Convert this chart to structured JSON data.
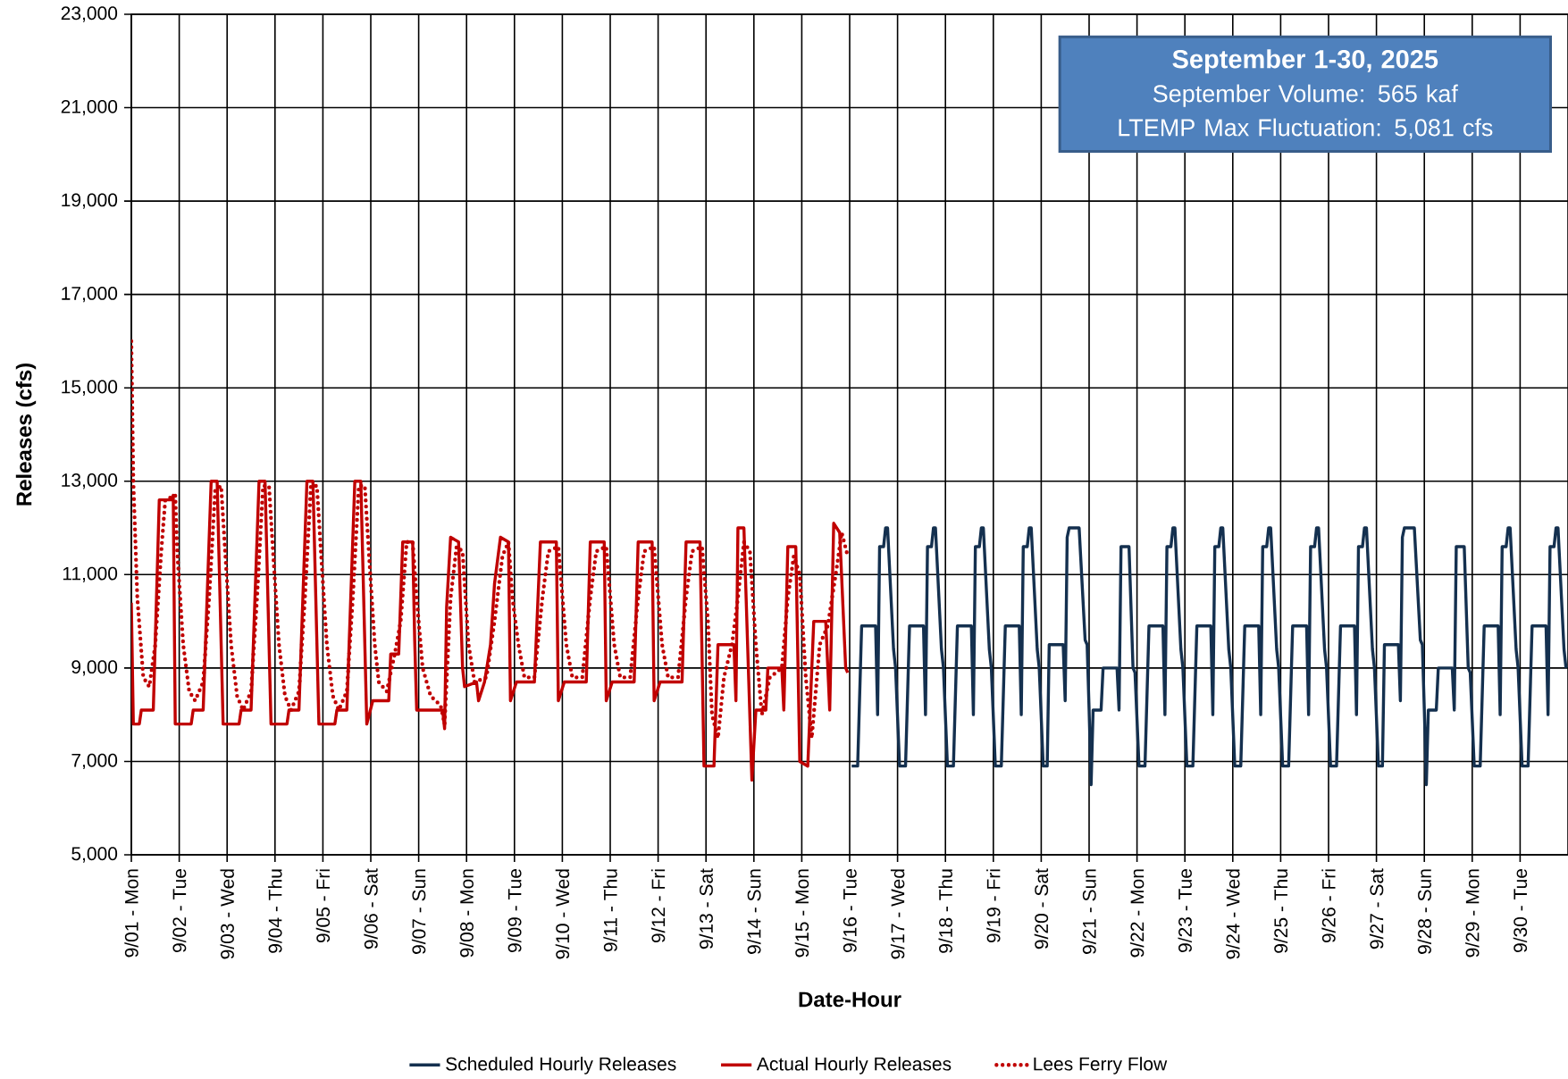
{
  "chart_data": {
    "type": "line",
    "title": "September 1-30, 2025",
    "annotations": [
      "September Volume: 565 kaf",
      "LTEMP Max Fluctuation: 5,081 cfs"
    ],
    "xlabel": "Date-Hour",
    "ylabel": "Releases (cfs)",
    "grid": true,
    "legend": "bottom",
    "xlim": [
      "2025-09-01T00:00",
      "2025-10-01T00:00"
    ],
    "ylim": [
      5000,
      23000
    ],
    "yticks": [
      {
        "value": 5000,
        "label": "5,000"
      },
      {
        "value": 7000,
        "label": "7,000"
      },
      {
        "value": 9000,
        "label": "9,000"
      },
      {
        "value": 11000,
        "label": "11,000"
      },
      {
        "value": 13000,
        "label": "13,000"
      },
      {
        "value": 15000,
        "label": "15,000"
      },
      {
        "value": 17000,
        "label": "17,000"
      },
      {
        "value": 19000,
        "label": "19,000"
      },
      {
        "value": 21000,
        "label": "21,000"
      },
      {
        "value": 23000,
        "label": "23,000"
      }
    ],
    "xticks": [
      {
        "value": "2025-09-01",
        "label": "9/01 - Mon"
      },
      {
        "value": "2025-09-02",
        "label": "9/02 - Tue"
      },
      {
        "value": "2025-09-03",
        "label": "9/03 - Wed"
      },
      {
        "value": "2025-09-04",
        "label": "9/04 - Thu"
      },
      {
        "value": "2025-09-05",
        "label": "9/05 - Fri"
      },
      {
        "value": "2025-09-06",
        "label": "9/06 - Sat"
      },
      {
        "value": "2025-09-07",
        "label": "9/07 - Sun"
      },
      {
        "value": "2025-09-08",
        "label": "9/08 - Mon"
      },
      {
        "value": "2025-09-09",
        "label": "9/09 - Tue"
      },
      {
        "value": "2025-09-10",
        "label": "9/10 - Wed"
      },
      {
        "value": "2025-09-11",
        "label": "9/11 - Thu"
      },
      {
        "value": "2025-09-12",
        "label": "9/12 - Fri"
      },
      {
        "value": "2025-09-13",
        "label": "9/13 - Sat"
      },
      {
        "value": "2025-09-14",
        "label": "9/14 - Sun"
      },
      {
        "value": "2025-09-15",
        "label": "9/15 - Mon"
      },
      {
        "value": "2025-09-16",
        "label": "9/16 - Tue"
      },
      {
        "value": "2025-09-17",
        "label": "9/17 - Wed"
      },
      {
        "value": "2025-09-18",
        "label": "9/18 - Thu"
      },
      {
        "value": "2025-09-19",
        "label": "9/19 - Fri"
      },
      {
        "value": "2025-09-20",
        "label": "9/20 - Sat"
      },
      {
        "value": "2025-09-21",
        "label": "9/21 - Sun"
      },
      {
        "value": "2025-09-22",
        "label": "9/22 - Mon"
      },
      {
        "value": "2025-09-23",
        "label": "9/23 - Tue"
      },
      {
        "value": "2025-09-24",
        "label": "9/24 - Wed"
      },
      {
        "value": "2025-09-25",
        "label": "9/25 - Thu"
      },
      {
        "value": "2025-09-26",
        "label": "9/26 - Fri"
      },
      {
        "value": "2025-09-27",
        "label": "9/27 - Sat"
      },
      {
        "value": "2025-09-28",
        "label": "9/28 - Sun"
      },
      {
        "value": "2025-09-29",
        "label": "9/29 - Mon"
      },
      {
        "value": "2025-09-30",
        "label": "9/30 - Tue"
      }
    ],
    "series": [
      {
        "name": "Scheduled Hourly Releases",
        "color": "#14304f",
        "line_style": "solid",
        "x": [
          "2025-09-16T01:00",
          "2025-09-16T04:00",
          "2025-09-16T06:00",
          "2025-09-16T13:00",
          "2025-09-16T14:00",
          "2025-09-16T15:00",
          "2025-09-16T17:00",
          "2025-09-16T18:00",
          "2025-09-16T19:00",
          "2025-09-16T22:00",
          "2025-09-16T23:00",
          "2025-09-17T01:00",
          "2025-09-17T04:00",
          "2025-09-17T06:00",
          "2025-09-17T13:00",
          "2025-09-17T14:00",
          "2025-09-17T15:00",
          "2025-09-17T17:00",
          "2025-09-17T18:00",
          "2025-09-17T19:00",
          "2025-09-17T22:00",
          "2025-09-17T23:00",
          "2025-09-18T01:00",
          "2025-09-18T04:00",
          "2025-09-18T06:00",
          "2025-09-18T13:00",
          "2025-09-18T14:00",
          "2025-09-18T15:00",
          "2025-09-18T17:00",
          "2025-09-18T18:00",
          "2025-09-18T19:00",
          "2025-09-18T22:00",
          "2025-09-18T23:00",
          "2025-09-19T01:00",
          "2025-09-19T04:00",
          "2025-09-19T06:00",
          "2025-09-19T13:00",
          "2025-09-19T14:00",
          "2025-09-19T15:00",
          "2025-09-19T17:00",
          "2025-09-19T18:00",
          "2025-09-19T19:00",
          "2025-09-19T22:00",
          "2025-09-19T23:00",
          "2025-09-20T01:00",
          "2025-09-20T03:00",
          "2025-09-20T04:00",
          "2025-09-20T11:00",
          "2025-09-20T12:00",
          "2025-09-20T13:00",
          "2025-09-20T14:00",
          "2025-09-20T19:00",
          "2025-09-20T22:00",
          "2025-09-20T23:00",
          "2025-09-21T00:00",
          "2025-09-21T01:00",
          "2025-09-21T02:00",
          "2025-09-21T06:00",
          "2025-09-21T07:00",
          "2025-09-21T14:00",
          "2025-09-21T15:00",
          "2025-09-21T16:00",
          "2025-09-21T20:00",
          "2025-09-21T22:00",
          "2025-09-21T23:00",
          "2025-09-22T01:00",
          "2025-09-22T04:00",
          "2025-09-22T06:00",
          "2025-09-22T13:00",
          "2025-09-22T14:00",
          "2025-09-22T15:00",
          "2025-09-22T17:00",
          "2025-09-22T18:00",
          "2025-09-22T19:00",
          "2025-09-22T22:00",
          "2025-09-22T23:00",
          "2025-09-23T01:00",
          "2025-09-23T04:00",
          "2025-09-23T06:00",
          "2025-09-23T13:00",
          "2025-09-23T14:00",
          "2025-09-23T15:00",
          "2025-09-23T17:00",
          "2025-09-23T18:00",
          "2025-09-23T19:00",
          "2025-09-23T22:00",
          "2025-09-23T23:00",
          "2025-09-24T01:00",
          "2025-09-24T04:00",
          "2025-09-24T06:00",
          "2025-09-24T13:00",
          "2025-09-24T14:00",
          "2025-09-24T15:00",
          "2025-09-24T17:00",
          "2025-09-24T18:00",
          "2025-09-24T19:00",
          "2025-09-24T22:00",
          "2025-09-24T23:00",
          "2025-09-25T01:00",
          "2025-09-25T04:00",
          "2025-09-25T06:00",
          "2025-09-25T13:00",
          "2025-09-25T14:00",
          "2025-09-25T15:00",
          "2025-09-25T17:00",
          "2025-09-25T18:00",
          "2025-09-25T19:00",
          "2025-09-25T22:00",
          "2025-09-25T23:00",
          "2025-09-26T01:00",
          "2025-09-26T04:00",
          "2025-09-26T06:00",
          "2025-09-26T13:00",
          "2025-09-26T14:00",
          "2025-09-26T15:00",
          "2025-09-26T17:00",
          "2025-09-26T18:00",
          "2025-09-26T19:00",
          "2025-09-26T22:00",
          "2025-09-26T23:00",
          "2025-09-27T01:00",
          "2025-09-27T03:00",
          "2025-09-27T04:00",
          "2025-09-27T11:00",
          "2025-09-27T12:00",
          "2025-09-27T13:00",
          "2025-09-27T14:00",
          "2025-09-27T19:00",
          "2025-09-27T22:00",
          "2025-09-27T23:00",
          "2025-09-28T00:00",
          "2025-09-28T01:00",
          "2025-09-28T02:00",
          "2025-09-28T06:00",
          "2025-09-28T07:00",
          "2025-09-28T14:00",
          "2025-09-28T15:00",
          "2025-09-28T16:00",
          "2025-09-28T20:00",
          "2025-09-28T22:00",
          "2025-09-28T23:00",
          "2025-09-29T01:00",
          "2025-09-29T04:00",
          "2025-09-29T06:00",
          "2025-09-29T13:00",
          "2025-09-29T14:00",
          "2025-09-29T15:00",
          "2025-09-29T17:00",
          "2025-09-29T18:00",
          "2025-09-29T19:00",
          "2025-09-29T22:00",
          "2025-09-29T23:00",
          "2025-09-30T01:00",
          "2025-09-30T04:00",
          "2025-09-30T06:00",
          "2025-09-30T13:00",
          "2025-09-30T14:00",
          "2025-09-30T15:00",
          "2025-09-30T17:00",
          "2025-09-30T18:00",
          "2025-09-30T19:00",
          "2025-09-30T22:00",
          "2025-09-30T23:00"
        ],
        "values": [
          6900,
          6900,
          9900,
          9900,
          8000,
          11600,
          11600,
          12000,
          12000,
          9400,
          9000,
          6900,
          6900,
          9900,
          9900,
          8000,
          11600,
          11600,
          12000,
          12000,
          9400,
          9000,
          6900,
          6900,
          9900,
          9900,
          8000,
          11600,
          11600,
          12000,
          12000,
          9400,
          9000,
          6900,
          6900,
          9900,
          9900,
          8000,
          11600,
          11600,
          12000,
          12000,
          9400,
          9000,
          6900,
          6900,
          9500,
          9500,
          8300,
          11800,
          12000,
          12000,
          9600,
          9500,
          8100,
          6500,
          8100,
          8100,
          9000,
          9000,
          8100,
          11600,
          11600,
          9000,
          8900,
          6900,
          6900,
          9900,
          9900,
          8000,
          11600,
          11600,
          12000,
          12000,
          9400,
          9000,
          6900,
          6900,
          9900,
          9900,
          8000,
          11600,
          11600,
          12000,
          12000,
          9400,
          9000,
          6900,
          6900,
          9900,
          9900,
          8000,
          11600,
          11600,
          12000,
          12000,
          9400,
          9000,
          6900,
          6900,
          9900,
          9900,
          8000,
          11600,
          11600,
          12000,
          12000,
          9400,
          9000,
          6900,
          6900,
          9900,
          9900,
          8000,
          11600,
          11600,
          12000,
          12000,
          9400,
          9000,
          6900,
          6900,
          9500,
          9500,
          8300,
          11800,
          12000,
          12000,
          9600,
          9500,
          8100,
          6500,
          8100,
          8100,
          9000,
          9000,
          8100,
          11600,
          11600,
          9000,
          8900,
          6900,
          6900,
          9900,
          9900,
          8000,
          11600,
          11600,
          12000,
          12000,
          9400,
          9000,
          6900,
          6900,
          9900,
          9900,
          8000,
          11600,
          11600,
          12000,
          12000,
          9400,
          9000
        ]
      },
      {
        "name": "Actual Hourly Releases",
        "color": "#c00000",
        "line_style": "solid",
        "x": [
          "2025-09-01T00:00",
          "2025-09-01T01:00",
          "2025-09-01T04:00",
          "2025-09-01T05:00",
          "2025-09-01T11:00",
          "2025-09-01T14:00",
          "2025-09-01T20:00",
          "2025-09-01T21:00",
          "2025-09-01T22:00",
          "2025-09-02T06:00",
          "2025-09-02T07:00",
          "2025-09-02T12:00",
          "2025-09-02T16:00",
          "2025-09-02T19:00",
          "2025-09-02T22:00",
          "2025-09-03T06:00",
          "2025-09-03T07:00",
          "2025-09-03T12:00",
          "2025-09-03T16:00",
          "2025-09-03T19:00",
          "2025-09-03T22:00",
          "2025-09-04T06:00",
          "2025-09-04T07:00",
          "2025-09-04T12:00",
          "2025-09-04T16:00",
          "2025-09-04T19:00",
          "2025-09-04T22:00",
          "2025-09-05T06:00",
          "2025-09-05T07:00",
          "2025-09-05T12:00",
          "2025-09-05T16:00",
          "2025-09-05T19:00",
          "2025-09-05T22:00",
          "2025-09-06T01:00",
          "2025-09-06T09:00",
          "2025-09-06T10:00",
          "2025-09-06T14:00",
          "2025-09-06T16:00",
          "2025-09-06T21:00",
          "2025-09-06T22:00",
          "2025-09-06T23:00",
          "2025-09-07T10:00",
          "2025-09-07T12:00",
          "2025-09-07T13:00",
          "2025-09-07T14:00",
          "2025-09-07T16:00",
          "2025-09-07T20:00",
          "2025-09-07T22:00",
          "2025-09-07T23:00",
          "2025-09-08T05:00",
          "2025-09-08T06:00",
          "2025-09-08T09:00",
          "2025-09-08T12:00",
          "2025-09-08T14:00",
          "2025-09-08T17:00",
          "2025-09-08T21:00",
          "2025-09-08T22:00",
          "2025-09-09T01:00",
          "2025-09-09T10:00",
          "2025-09-09T13:00",
          "2025-09-09T21:00",
          "2025-09-09T22:00",
          "2025-09-10T01:00",
          "2025-09-10T12:00",
          "2025-09-10T14:00",
          "2025-09-10T21:00",
          "2025-09-10T22:00",
          "2025-09-11T01:00",
          "2025-09-11T12:00",
          "2025-09-11T14:00",
          "2025-09-11T21:00",
          "2025-09-11T22:00",
          "2025-09-12T01:00",
          "2025-09-12T12:00",
          "2025-09-12T14:00",
          "2025-09-12T21:00",
          "2025-09-12T23:00",
          "2025-09-13T04:00",
          "2025-09-13T06:00",
          "2025-09-13T14:00",
          "2025-09-13T15:00",
          "2025-09-13T16:00",
          "2025-09-13T19:00",
          "2025-09-13T23:00",
          "2025-09-14T01:00",
          "2025-09-14T06:00",
          "2025-09-14T07:00",
          "2025-09-14T14:00",
          "2025-09-14T15:00",
          "2025-09-14T17:00",
          "2025-09-14T21:00",
          "2025-09-14T23:00",
          "2025-09-15T03:00",
          "2025-09-15T06:00",
          "2025-09-15T12:00",
          "2025-09-15T14:00",
          "2025-09-15T16:00",
          "2025-09-15T19:00",
          "2025-09-15T22:00",
          "2025-09-15T23:00"
        ],
        "values": [
          10400,
          7800,
          7800,
          8100,
          8100,
          12600,
          12600,
          12700,
          7800,
          7800,
          8100,
          8100,
          13000,
          13000,
          7800,
          7800,
          8100,
          8100,
          13000,
          13000,
          7800,
          7800,
          8100,
          8100,
          13000,
          13000,
          7800,
          7800,
          8100,
          8100,
          13000,
          13000,
          7800,
          8300,
          8300,
          9300,
          9300,
          11700,
          11700,
          9600,
          8100,
          8100,
          8100,
          7700,
          10300,
          11800,
          11700,
          9000,
          8600,
          8700,
          8300,
          8700,
          9500,
          10800,
          11800,
          11700,
          8300,
          8700,
          8700,
          11700,
          11700,
          8300,
          8700,
          8700,
          11700,
          11700,
          8300,
          8700,
          8700,
          11700,
          11700,
          8300,
          8700,
          8700,
          11700,
          11700,
          6900,
          6900,
          9500,
          9500,
          8300,
          12000,
          12000,
          6600,
          8100,
          8100,
          9000,
          9000,
          8100,
          11600,
          11600,
          7000,
          6900,
          10000,
          10000,
          8100,
          12100,
          11900,
          9000,
          8900
        ]
      },
      {
        "name": "Lees Ferry Flow",
        "color": "#c00000",
        "line_style": "dotted",
        "x": [
          "2025-09-01T00:00",
          "2025-09-01T01:00",
          "2025-09-01T03:00",
          "2025-09-01T06:00",
          "2025-09-01T09:00",
          "2025-09-01T12:00",
          "2025-09-01T15:00",
          "2025-09-01T17:00",
          "2025-09-01T22:00",
          "2025-09-01T23:00",
          "2025-09-02T02:00",
          "2025-09-02T05:00",
          "2025-09-02T08:00",
          "2025-09-02T12:00",
          "2025-09-02T15:00",
          "2025-09-02T18:00",
          "2025-09-02T21:00",
          "2025-09-02T23:00",
          "2025-09-03T02:00",
          "2025-09-03T05:00",
          "2025-09-03T08:00",
          "2025-09-03T12:00",
          "2025-09-03T15:00",
          "2025-09-03T18:00",
          "2025-09-03T21:00",
          "2025-09-03T23:00",
          "2025-09-04T02:00",
          "2025-09-04T05:00",
          "2025-09-04T08:00",
          "2025-09-04T12:00",
          "2025-09-04T15:00",
          "2025-09-04T18:00",
          "2025-09-04T21:00",
          "2025-09-04T23:00",
          "2025-09-05T02:00",
          "2025-09-05T05:00",
          "2025-09-05T08:00",
          "2025-09-05T12:00",
          "2025-09-05T15:00",
          "2025-09-05T18:00",
          "2025-09-05T21:00",
          "2025-09-05T23:00",
          "2025-09-06T02:00",
          "2025-09-06T04:00",
          "2025-09-06T08:00",
          "2025-09-06T12:00",
          "2025-09-06T15:00",
          "2025-09-06T18:00",
          "2025-09-06T21:00",
          "2025-09-06T23:00",
          "2025-09-07T02:00",
          "2025-09-07T06:00",
          "2025-09-07T11:00",
          "2025-09-07T13:00",
          "2025-09-07T16:00",
          "2025-09-07T19:00",
          "2025-09-07T22:00",
          "2025-09-08T01:00",
          "2025-09-08T04:00",
          "2025-09-08T10:00",
          "2025-09-08T14:00",
          "2025-09-08T18:00",
          "2025-09-08T21:00",
          "2025-09-08T23:00",
          "2025-09-09T02:00",
          "2025-09-09T05:00",
          "2025-09-09T10:00",
          "2025-09-09T14:00",
          "2025-09-09T17:00",
          "2025-09-09T22:00",
          "2025-09-10T02:00",
          "2025-09-10T05:00",
          "2025-09-10T10:00",
          "2025-09-10T14:00",
          "2025-09-10T17:00",
          "2025-09-10T22:00",
          "2025-09-11T02:00",
          "2025-09-11T05:00",
          "2025-09-11T10:00",
          "2025-09-11T14:00",
          "2025-09-11T17:00",
          "2025-09-11T22:00",
          "2025-09-12T02:00",
          "2025-09-12T05:00",
          "2025-09-12T10:00",
          "2025-09-12T14:00",
          "2025-09-12T17:00",
          "2025-09-12T22:00",
          "2025-09-13T01:00",
          "2025-09-13T03:00",
          "2025-09-13T06:00",
          "2025-09-13T09:00",
          "2025-09-13T13:00",
          "2025-09-13T16:00",
          "2025-09-13T19:00",
          "2025-09-13T22:00",
          "2025-09-14T01:00",
          "2025-09-14T04:00",
          "2025-09-14T08:00",
          "2025-09-14T14:00",
          "2025-09-14T17:00",
          "2025-09-14T20:00",
          "2025-09-14T23:00",
          "2025-09-15T02:00",
          "2025-09-15T05:00",
          "2025-09-15T09:00",
          "2025-09-15T13:00",
          "2025-09-15T17:00",
          "2025-09-15T20:00",
          "2025-09-15T23:00"
        ],
        "values": [
          16000,
          13000,
          10500,
          8800,
          8600,
          9500,
          11500,
          12600,
          12700,
          11500,
          9500,
          8500,
          8300,
          8700,
          10500,
          12800,
          12900,
          11500,
          9500,
          8400,
          8100,
          8500,
          10500,
          12900,
          12900,
          11500,
          9500,
          8400,
          8100,
          8500,
          10500,
          12900,
          12900,
          11500,
          9500,
          8400,
          8100,
          8500,
          10500,
          12900,
          12900,
          11500,
          9500,
          8700,
          8500,
          9300,
          10000,
          11700,
          11700,
          10500,
          9000,
          8400,
          8200,
          7800,
          10500,
          11600,
          11500,
          9500,
          8700,
          8800,
          10000,
          11400,
          11700,
          10500,
          9500,
          8800,
          8800,
          10500,
          11500,
          11600,
          9500,
          8800,
          8800,
          10500,
          11500,
          11600,
          9500,
          8800,
          8800,
          10500,
          11500,
          11600,
          9500,
          8800,
          8800,
          10500,
          11500,
          11600,
          10000,
          8000,
          7500,
          8800,
          9500,
          10500,
          11700,
          11500,
          9500,
          8000,
          8800,
          9000,
          10500,
          11400,
          11000,
          8800,
          7500,
          9500,
          9900,
          11000,
          11900,
          11400
        ]
      }
    ]
  }
}
